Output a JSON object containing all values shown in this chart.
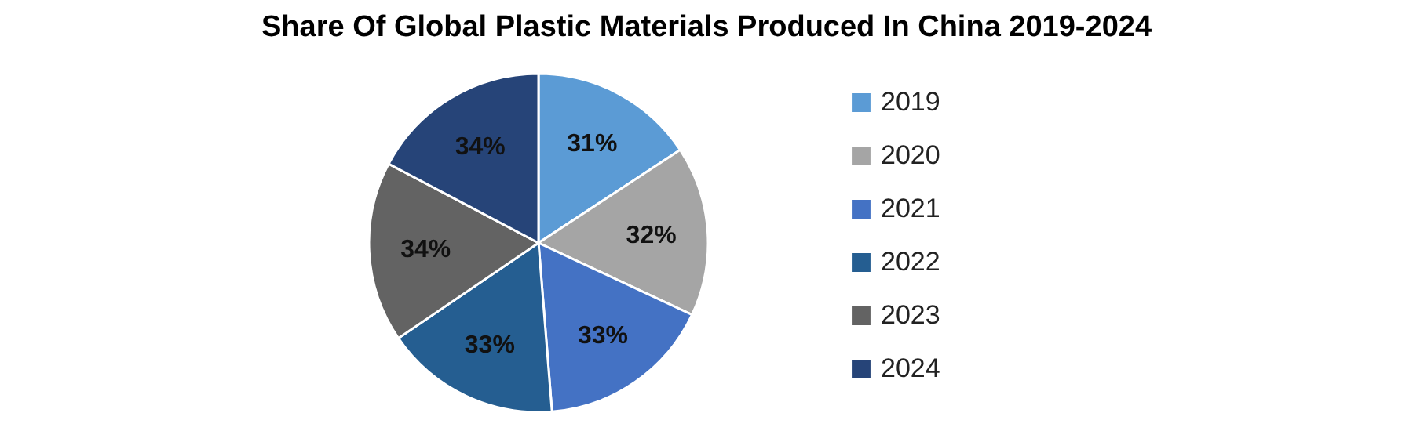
{
  "chart_data": {
    "type": "pie",
    "title": "Share Of Global Plastic Materials Produced In China 2019-2024",
    "categories": [
      "2019",
      "2020",
      "2021",
      "2022",
      "2023",
      "2024"
    ],
    "values": [
      31,
      32,
      33,
      33,
      34,
      34
    ],
    "value_labels": [
      "31%",
      "32%",
      "33%",
      "33%",
      "34%",
      "34%"
    ],
    "colors": [
      "#5b9bd5",
      "#a5a5a5",
      "#4472c4",
      "#255e91",
      "#636363",
      "#264478"
    ],
    "legend": "right"
  }
}
